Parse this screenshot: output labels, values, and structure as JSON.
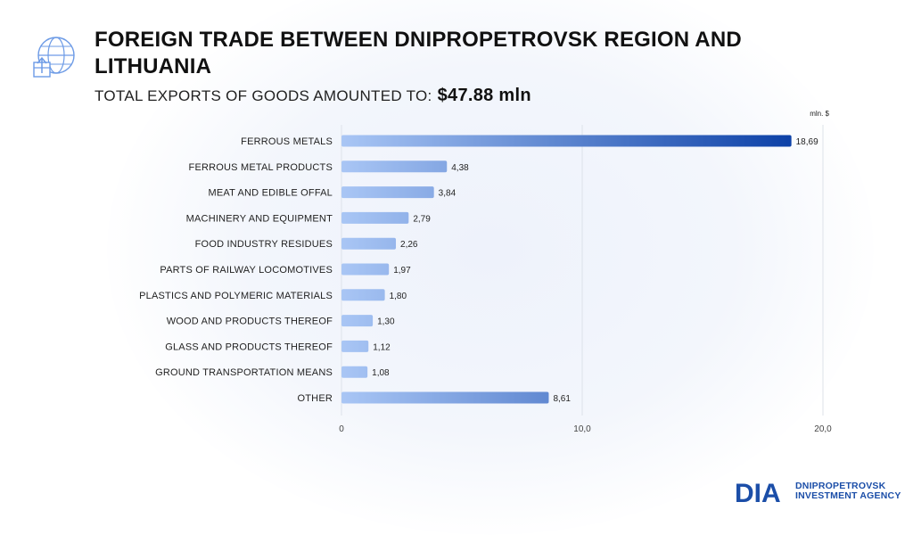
{
  "header": {
    "title": "FOREIGN TRADE BETWEEN DNIPROPETROVSK REGION AND LITHUANIA",
    "subtitle_prefix": "TOTAL EXPORTS OF GOODS AMOUNTED TO:",
    "subtitle_value": "$47.88 mln",
    "icon": "globe-export-icon"
  },
  "chart_data": {
    "type": "bar",
    "orientation": "horizontal",
    "unit_label": "mln. $",
    "categories": [
      "FERROUS METALS",
      "FERROUS METAL PRODUCTS",
      "MEAT AND EDIBLE OFFAL",
      "MACHINERY AND EQUIPMENT",
      "FOOD INDUSTRY RESIDUES",
      "PARTS OF RAILWAY LOCOMOTIVES",
      "PLASTICS AND POLYMERIC MATERIALS",
      "WOOD AND PRODUCTS THEREOF",
      "GLASS AND PRODUCTS THEREOF",
      "GROUND TRANSPORTATION MEANS",
      "OTHER"
    ],
    "values": [
      18.69,
      4.38,
      3.84,
      2.79,
      2.26,
      1.97,
      1.8,
      1.3,
      1.12,
      1.08,
      8.61
    ],
    "value_labels": [
      "18,69",
      "4,38",
      "3,84",
      "2,79",
      "2,26",
      "1,97",
      "1,80",
      "1,30",
      "1,12",
      "1,08",
      "8,61"
    ],
    "xlim": [
      0,
      20
    ],
    "x_ticks": [
      0,
      10,
      20
    ],
    "x_tick_labels": [
      "0",
      "10,0",
      "20,0"
    ],
    "grid": true,
    "colors": {
      "bar_start": "#a9c6f5",
      "bar_end": "#0a3fa6",
      "grid": "#dde2ea"
    }
  },
  "logo": {
    "mark": "DIA",
    "line1": "DNIPROPETROVSK",
    "line2": "INVESTMENT AGENCY",
    "color": "#1b4ea8"
  }
}
